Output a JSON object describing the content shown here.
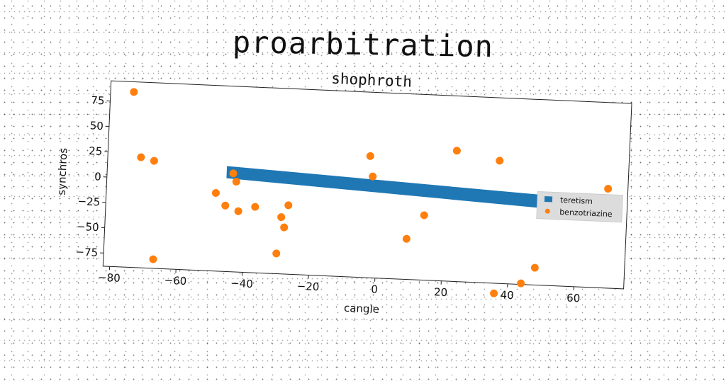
{
  "suptitle": "proarbitration",
  "chart_data": {
    "type": "scatter",
    "title": "shophroth",
    "xlabel": "cangle",
    "ylabel": "synchros",
    "xlim": [
      -82,
      75
    ],
    "ylim": [
      -88,
      95
    ],
    "xticks": [
      -80,
      -60,
      -40,
      -20,
      0,
      20,
      40,
      60
    ],
    "yticks": [
      75,
      50,
      25,
      0,
      -25,
      -50,
      -75
    ],
    "legend_position": "right",
    "series": [
      {
        "name": "teretism",
        "kind": "band",
        "color": "#1f77b4",
        "x": [
          -46,
          50
        ],
        "y_low": [
          4,
          -12
        ],
        "y_high": [
          16,
          1
        ]
      },
      {
        "name": "benzotriazine",
        "kind": "points",
        "color": "#ff7f0e",
        "points": [
          [
            -75,
            85
          ],
          [
            -72,
            21
          ],
          [
            -68,
            18
          ],
          [
            -67,
            -79
          ],
          [
            -49,
            -11
          ],
          [
            -46,
            -23
          ],
          [
            -44,
            9
          ],
          [
            -43,
            1
          ],
          [
            -42,
            -28
          ],
          [
            -37,
            -23
          ],
          [
            -30,
            -68
          ],
          [
            -29,
            -32
          ],
          [
            -28,
            -42
          ],
          [
            -27,
            -20
          ],
          [
            -3,
            32
          ],
          [
            -2,
            12
          ],
          [
            9,
            -48
          ],
          [
            14,
            -24
          ],
          [
            23,
            41
          ],
          [
            36,
            33
          ],
          [
            36,
            -98
          ],
          [
            44,
            -87
          ],
          [
            48,
            -71
          ],
          [
            69,
            10
          ]
        ]
      }
    ]
  }
}
